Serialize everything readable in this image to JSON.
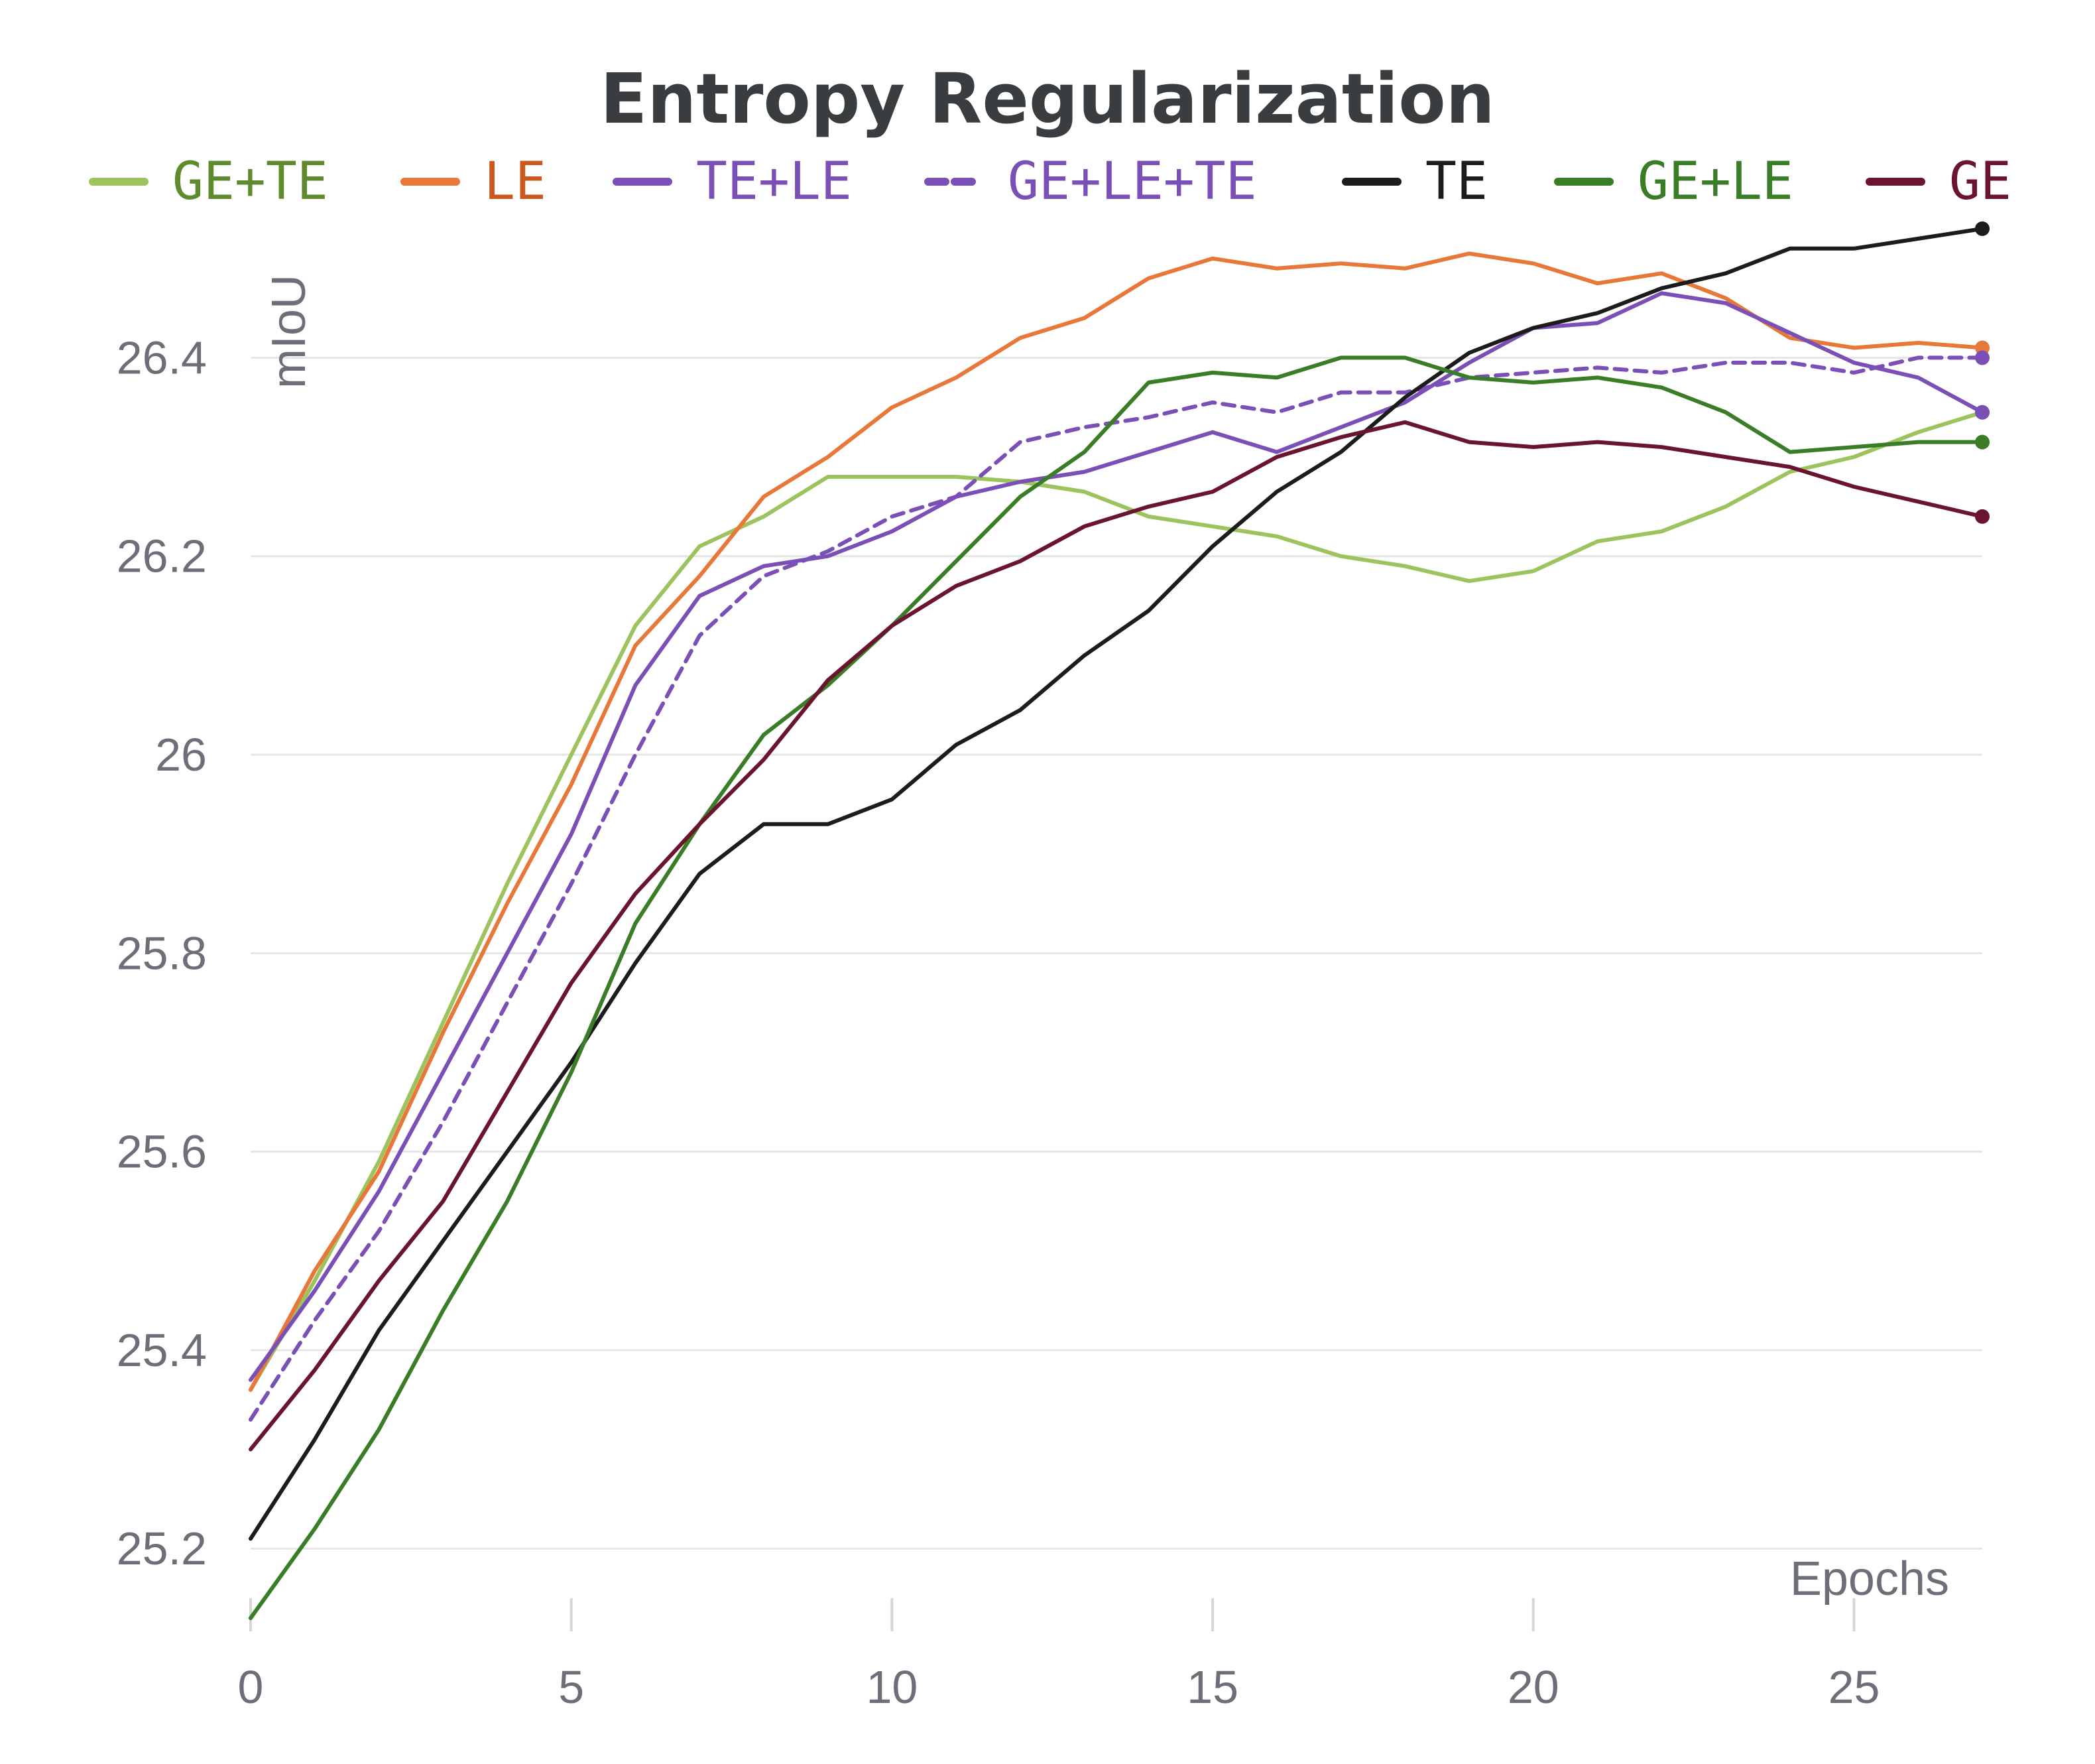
{
  "chart_data": {
    "type": "line",
    "title": "Entropy Regularization",
    "xlabel": "Epochs",
    "ylabel": "mIoU",
    "xlim": [
      0,
      27
    ],
    "ylim": [
      25.13,
      26.56
    ],
    "xticks": [
      0,
      5,
      10,
      15,
      20,
      25
    ],
    "xtick_labels": [
      "0",
      "5",
      "10",
      "15",
      "20",
      "25"
    ],
    "yticks": [
      25.2,
      25.4,
      25.6,
      25.8,
      26.0,
      26.2,
      26.4
    ],
    "ytick_labels": [
      "25.2",
      "25.4",
      "25.6",
      "25.8",
      "26",
      "26.2",
      "26.4"
    ],
    "grid": true,
    "legend_position": "top",
    "x": [
      0,
      1,
      2,
      3,
      4,
      5,
      6,
      7,
      8,
      9,
      10,
      11,
      12,
      13,
      14,
      15,
      16,
      17,
      18,
      19,
      20,
      21,
      22,
      23,
      24,
      25,
      26,
      27
    ],
    "series": [
      {
        "name": "GE+TE",
        "color": "#9dc35e",
        "text_color": "#5f8a2e",
        "dash": false,
        "values": [
          25.36,
          25.47,
          25.59,
          25.73,
          25.87,
          26.0,
          26.13,
          26.21,
          26.24,
          26.28,
          26.28,
          26.28,
          26.275,
          26.265,
          26.24,
          26.23,
          26.22,
          26.2,
          26.19,
          26.175,
          26.185,
          26.215,
          26.225,
          26.25,
          26.285,
          26.3,
          26.325,
          26.345
        ]
      },
      {
        "name": "LE",
        "color": "#e8773a",
        "text_color": "#c9591f",
        "dash": false,
        "values": [
          25.36,
          25.48,
          25.58,
          25.72,
          25.85,
          25.97,
          26.11,
          26.18,
          26.26,
          26.3,
          26.35,
          26.38,
          26.42,
          26.44,
          26.48,
          26.5,
          26.49,
          26.495,
          26.49,
          26.505,
          26.495,
          26.475,
          26.485,
          26.46,
          26.42,
          26.41,
          26.415,
          26.41
        ]
      },
      {
        "name": "TE+LE",
        "color": "#7a4fb6",
        "text_color": "#7a4fb6",
        "dash": false,
        "values": [
          25.37,
          25.46,
          25.56,
          25.68,
          25.8,
          25.92,
          26.07,
          26.16,
          26.19,
          26.2,
          26.225,
          26.26,
          26.275,
          26.285,
          26.305,
          26.325,
          26.305,
          26.33,
          26.355,
          26.395,
          26.43,
          26.435,
          26.465,
          26.455,
          26.425,
          26.395,
          26.38,
          26.345
        ]
      },
      {
        "name": "GE+LE+TE",
        "color": "#7a4fb6",
        "text_color": "#7a4fb6",
        "dash": true,
        "values": [
          25.33,
          25.43,
          25.52,
          25.63,
          25.75,
          25.87,
          26.0,
          26.12,
          26.18,
          26.205,
          26.24,
          26.26,
          26.315,
          26.33,
          26.34,
          26.355,
          26.345,
          26.365,
          26.365,
          26.38,
          26.385,
          26.39,
          26.385,
          26.395,
          26.395,
          26.385,
          26.4,
          26.4
        ]
      },
      {
        "name": "TE",
        "color": "#1c1c1c",
        "text_color": "#1c1c1c",
        "dash": false,
        "values": [
          25.21,
          25.31,
          25.42,
          25.51,
          25.6,
          25.69,
          25.79,
          25.88,
          25.93,
          25.93,
          25.955,
          26.01,
          26.045,
          26.1,
          26.145,
          26.21,
          26.265,
          26.305,
          26.36,
          26.405,
          26.43,
          26.445,
          26.47,
          26.485,
          26.51,
          26.51,
          26.52,
          26.53
        ]
      },
      {
        "name": "GE+LE",
        "color": "#3a7d27",
        "text_color": "#3a7d27",
        "dash": false,
        "values": [
          25.13,
          25.22,
          25.32,
          25.44,
          25.55,
          25.68,
          25.83,
          25.93,
          26.02,
          26.07,
          26.13,
          26.195,
          26.26,
          26.305,
          26.375,
          26.385,
          26.38,
          26.4,
          26.4,
          26.38,
          26.375,
          26.38,
          26.37,
          26.345,
          26.305,
          26.31,
          26.315,
          26.315
        ]
      },
      {
        "name": "GE",
        "color": "#6a1430",
        "text_color": "#6a1430",
        "dash": false,
        "values": [
          25.3,
          25.38,
          25.47,
          25.55,
          25.66,
          25.77,
          25.86,
          25.93,
          25.995,
          26.075,
          26.13,
          26.17,
          26.195,
          26.23,
          26.25,
          26.265,
          26.3,
          26.32,
          26.335,
          26.315,
          26.31,
          26.315,
          26.31,
          26.3,
          26.29,
          26.27,
          26.255,
          26.24
        ]
      }
    ]
  }
}
